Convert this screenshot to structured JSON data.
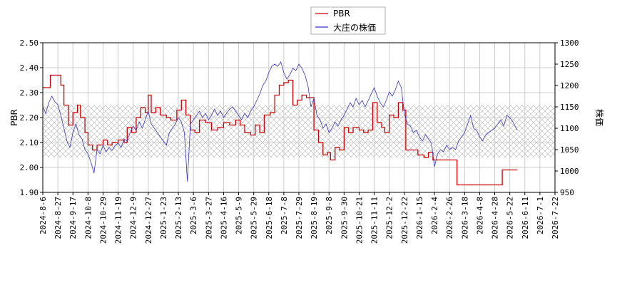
{
  "chart_data": {
    "type": "line",
    "legend": {
      "placement": "top-center",
      "entries": [
        "PBR",
        "大庄の株価"
      ]
    },
    "left_axis": {
      "label": "PBR",
      "ylim": [
        1.9,
        2.5
      ],
      "ticks": [
        "1.90",
        "2.00",
        "2.10",
        "2.20",
        "2.30",
        "2.40",
        "2.50"
      ]
    },
    "right_axis": {
      "label": "株価",
      "ylim": [
        950,
        1300
      ],
      "ticks": [
        "950",
        "1000",
        "1050",
        "1100",
        "1150",
        "1200",
        "1250",
        "1300"
      ]
    },
    "band": {
      "range": [
        2.04,
        2.25
      ],
      "pattern": "crosshatch"
    },
    "grid": true,
    "x_ticks": [
      "2024-8-6",
      "2024-8-27",
      "2024-9-17",
      "2024-10-8",
      "2024-10-29",
      "2024-11-19",
      "2024-12-9",
      "2024-12-27",
      "2025-1-23",
      "2025-2-13",
      "2025-3-6",
      "2025-3-27",
      "2025-4-16",
      "2025-5-9",
      "2025-5-29",
      "2025-6-18",
      "2025-7-8",
      "2025-7-29",
      "2025-8-19",
      "2025-9-8",
      "2025-9-30",
      "2025-10-21",
      "2025-11-11",
      "2025-12-2",
      "2025-12-22",
      "2026-1-15",
      "2026-2-4",
      "2026-2-26",
      "2026-3-18",
      "2026-4-8",
      "2026-4-28",
      "2026-5-22",
      "2026-6-11",
      "2026-7-1",
      "2026-7-22"
    ],
    "series": [
      {
        "name": "PBR",
        "color": "#cc0000",
        "axis": "left",
        "points": [
          [
            0,
            2.32
          ],
          [
            0.5,
            2.37
          ],
          [
            1,
            2.37
          ],
          [
            1.2,
            2.33
          ],
          [
            1.4,
            2.25
          ],
          [
            1.7,
            2.17
          ],
          [
            2.0,
            2.22
          ],
          [
            2.3,
            2.25
          ],
          [
            2.5,
            2.2
          ],
          [
            2.8,
            2.14
          ],
          [
            3.0,
            2.09
          ],
          [
            3.3,
            2.07
          ],
          [
            3.6,
            2.09
          ],
          [
            4.0,
            2.11
          ],
          [
            4.3,
            2.09
          ],
          [
            4.6,
            2.1
          ],
          [
            5.0,
            2.11
          ],
          [
            5.4,
            2.1
          ],
          [
            5.6,
            2.16
          ],
          [
            5.9,
            2.14
          ],
          [
            6.2,
            2.2
          ],
          [
            6.5,
            2.24
          ],
          [
            6.8,
            2.22
          ],
          [
            7.0,
            2.29
          ],
          [
            7.2,
            2.22
          ],
          [
            7.5,
            2.24
          ],
          [
            7.8,
            2.21
          ],
          [
            8.2,
            2.2
          ],
          [
            8.5,
            2.19
          ],
          [
            8.9,
            2.23
          ],
          [
            9.2,
            2.27
          ],
          [
            9.5,
            2.21
          ],
          [
            9.8,
            2.15
          ],
          [
            10.1,
            2.14
          ],
          [
            10.4,
            2.19
          ],
          [
            10.8,
            2.18
          ],
          [
            11.2,
            2.15
          ],
          [
            11.6,
            2.16
          ],
          [
            12.0,
            2.18
          ],
          [
            12.4,
            2.17
          ],
          [
            12.8,
            2.19
          ],
          [
            13.1,
            2.17
          ],
          [
            13.4,
            2.14
          ],
          [
            13.8,
            2.13
          ],
          [
            14.1,
            2.17
          ],
          [
            14.4,
            2.14
          ],
          [
            14.7,
            2.21
          ],
          [
            15.1,
            2.22
          ],
          [
            15.4,
            2.29
          ],
          [
            15.7,
            2.33
          ],
          [
            16.0,
            2.34
          ],
          [
            16.3,
            2.35
          ],
          [
            16.6,
            2.25
          ],
          [
            16.9,
            2.27
          ],
          [
            17.2,
            2.29
          ],
          [
            17.5,
            2.28
          ],
          [
            17.9,
            2.28
          ],
          [
            18.0,
            2.15
          ],
          [
            18.3,
            2.1
          ],
          [
            18.6,
            2.05
          ],
          [
            18.9,
            2.06
          ],
          [
            19.1,
            2.03
          ],
          [
            19.4,
            2.08
          ],
          [
            19.7,
            2.07
          ],
          [
            20.0,
            2.16
          ],
          [
            20.3,
            2.14
          ],
          [
            20.6,
            2.16
          ],
          [
            21.0,
            2.15
          ],
          [
            21.3,
            2.14
          ],
          [
            21.6,
            2.15
          ],
          [
            21.9,
            2.26
          ],
          [
            22.2,
            2.18
          ],
          [
            22.5,
            2.16
          ],
          [
            22.7,
            2.14
          ],
          [
            23.0,
            2.21
          ],
          [
            23.3,
            2.2
          ],
          [
            23.6,
            2.26
          ],
          [
            23.9,
            2.23
          ],
          [
            24.1,
            2.07
          ],
          [
            24.5,
            2.07
          ],
          [
            24.9,
            2.05
          ],
          [
            25.3,
            2.04
          ],
          [
            25.6,
            2.06
          ],
          [
            25.9,
            2.03
          ],
          [
            26.2,
            2.03
          ],
          [
            27.0,
            2.03
          ],
          [
            27.5,
            1.93
          ],
          [
            29.0,
            1.93
          ],
          [
            30.0,
            1.93
          ],
          [
            30.5,
            1.99
          ],
          [
            31.5,
            1.99
          ]
        ]
      },
      {
        "name": "大庄の株価",
        "color": "#3333cc",
        "axis": "right",
        "points": [
          [
            0,
            1150
          ],
          [
            0.2,
            1135
          ],
          [
            0.4,
            1160
          ],
          [
            0.6,
            1175
          ],
          [
            0.8,
            1162
          ],
          [
            1.0,
            1155
          ],
          [
            1.2,
            1130
          ],
          [
            1.4,
            1100
          ],
          [
            1.6,
            1070
          ],
          [
            1.8,
            1055
          ],
          [
            2.0,
            1090
          ],
          [
            2.2,
            1110
          ],
          [
            2.4,
            1085
          ],
          [
            2.6,
            1075
          ],
          [
            2.8,
            1050
          ],
          [
            3.0,
            1040
          ],
          [
            3.2,
            1020
          ],
          [
            3.4,
            995
          ],
          [
            3.6,
            1050
          ],
          [
            3.8,
            1040
          ],
          [
            4.0,
            1060
          ],
          [
            4.2,
            1045
          ],
          [
            4.4,
            1055
          ],
          [
            4.6,
            1048
          ],
          [
            4.8,
            1060
          ],
          [
            5.0,
            1065
          ],
          [
            5.2,
            1055
          ],
          [
            5.4,
            1075
          ],
          [
            5.6,
            1070
          ],
          [
            5.8,
            1090
          ],
          [
            6.0,
            1105
          ],
          [
            6.2,
            1095
          ],
          [
            6.4,
            1115
          ],
          [
            6.6,
            1100
          ],
          [
            6.8,
            1120
          ],
          [
            7.0,
            1140
          ],
          [
            7.2,
            1110
          ],
          [
            7.4,
            1100
          ],
          [
            7.6,
            1090
          ],
          [
            7.8,
            1080
          ],
          [
            8.0,
            1070
          ],
          [
            8.2,
            1060
          ],
          [
            8.4,
            1090
          ],
          [
            8.6,
            1100
          ],
          [
            8.8,
            1110
          ],
          [
            9.0,
            1125
          ],
          [
            9.2,
            1115
          ],
          [
            9.4,
            1090
          ],
          [
            9.6,
            975
          ],
          [
            9.8,
            1110
          ],
          [
            10.0,
            1120
          ],
          [
            10.2,
            1130
          ],
          [
            10.4,
            1140
          ],
          [
            10.6,
            1125
          ],
          [
            10.8,
            1135
          ],
          [
            11.0,
            1120
          ],
          [
            11.2,
            1130
          ],
          [
            11.4,
            1145
          ],
          [
            11.6,
            1130
          ],
          [
            11.8,
            1140
          ],
          [
            12.0,
            1125
          ],
          [
            12.2,
            1135
          ],
          [
            12.4,
            1145
          ],
          [
            12.6,
            1150
          ],
          [
            12.8,
            1140
          ],
          [
            13.0,
            1130
          ],
          [
            13.2,
            1120
          ],
          [
            13.4,
            1135
          ],
          [
            13.6,
            1125
          ],
          [
            13.8,
            1140
          ],
          [
            14.0,
            1150
          ],
          [
            14.2,
            1165
          ],
          [
            14.4,
            1180
          ],
          [
            14.6,
            1200
          ],
          [
            14.8,
            1210
          ],
          [
            15.0,
            1230
          ],
          [
            15.2,
            1245
          ],
          [
            15.4,
            1250
          ],
          [
            15.6,
            1245
          ],
          [
            15.8,
            1255
          ],
          [
            16.0,
            1230
          ],
          [
            16.2,
            1215
          ],
          [
            16.4,
            1225
          ],
          [
            16.6,
            1240
          ],
          [
            16.8,
            1235
          ],
          [
            17.0,
            1250
          ],
          [
            17.2,
            1240
          ],
          [
            17.4,
            1225
          ],
          [
            17.6,
            1200
          ],
          [
            17.8,
            1150
          ],
          [
            18.0,
            1170
          ],
          [
            18.2,
            1130
          ],
          [
            18.4,
            1120
          ],
          [
            18.6,
            1100
          ],
          [
            18.8,
            1110
          ],
          [
            19.0,
            1090
          ],
          [
            19.2,
            1100
          ],
          [
            19.4,
            1115
          ],
          [
            19.6,
            1105
          ],
          [
            19.8,
            1120
          ],
          [
            20.0,
            1130
          ],
          [
            20.2,
            1145
          ],
          [
            20.4,
            1160
          ],
          [
            20.6,
            1150
          ],
          [
            20.8,
            1170
          ],
          [
            21.0,
            1155
          ],
          [
            21.2,
            1165
          ],
          [
            21.4,
            1150
          ],
          [
            21.6,
            1165
          ],
          [
            21.8,
            1180
          ],
          [
            22.0,
            1195
          ],
          [
            22.2,
            1175
          ],
          [
            22.4,
            1160
          ],
          [
            22.6,
            1150
          ],
          [
            22.8,
            1165
          ],
          [
            23.0,
            1185
          ],
          [
            23.2,
            1175
          ],
          [
            23.4,
            1190
          ],
          [
            23.6,
            1210
          ],
          [
            23.8,
            1195
          ],
          [
            24.0,
            1135
          ],
          [
            24.2,
            1110
          ],
          [
            24.4,
            1105
          ],
          [
            24.6,
            1090
          ],
          [
            24.8,
            1095
          ],
          [
            25.0,
            1080
          ],
          [
            25.2,
            1070
          ],
          [
            25.4,
            1085
          ],
          [
            25.6,
            1075
          ],
          [
            25.8,
            1065
          ],
          [
            26.0,
            1010
          ],
          [
            26.2,
            1040
          ],
          [
            26.4,
            1050
          ],
          [
            26.6,
            1045
          ],
          [
            26.8,
            1060
          ],
          [
            27.0,
            1050
          ],
          [
            27.2,
            1055
          ],
          [
            27.4,
            1050
          ],
          [
            27.6,
            1070
          ],
          [
            27.8,
            1080
          ],
          [
            28.0,
            1090
          ],
          [
            28.2,
            1110
          ],
          [
            28.4,
            1130
          ],
          [
            28.6,
            1100
          ],
          [
            28.8,
            1095
          ],
          [
            29.0,
            1080
          ],
          [
            29.2,
            1070
          ],
          [
            29.4,
            1085
          ],
          [
            29.6,
            1090
          ],
          [
            29.8,
            1095
          ],
          [
            30.0,
            1100
          ],
          [
            30.2,
            1110
          ],
          [
            30.4,
            1120
          ],
          [
            30.6,
            1105
          ],
          [
            30.8,
            1130
          ],
          [
            31.0,
            1125
          ],
          [
            31.2,
            1115
          ],
          [
            31.5,
            1095
          ]
        ]
      }
    ]
  }
}
